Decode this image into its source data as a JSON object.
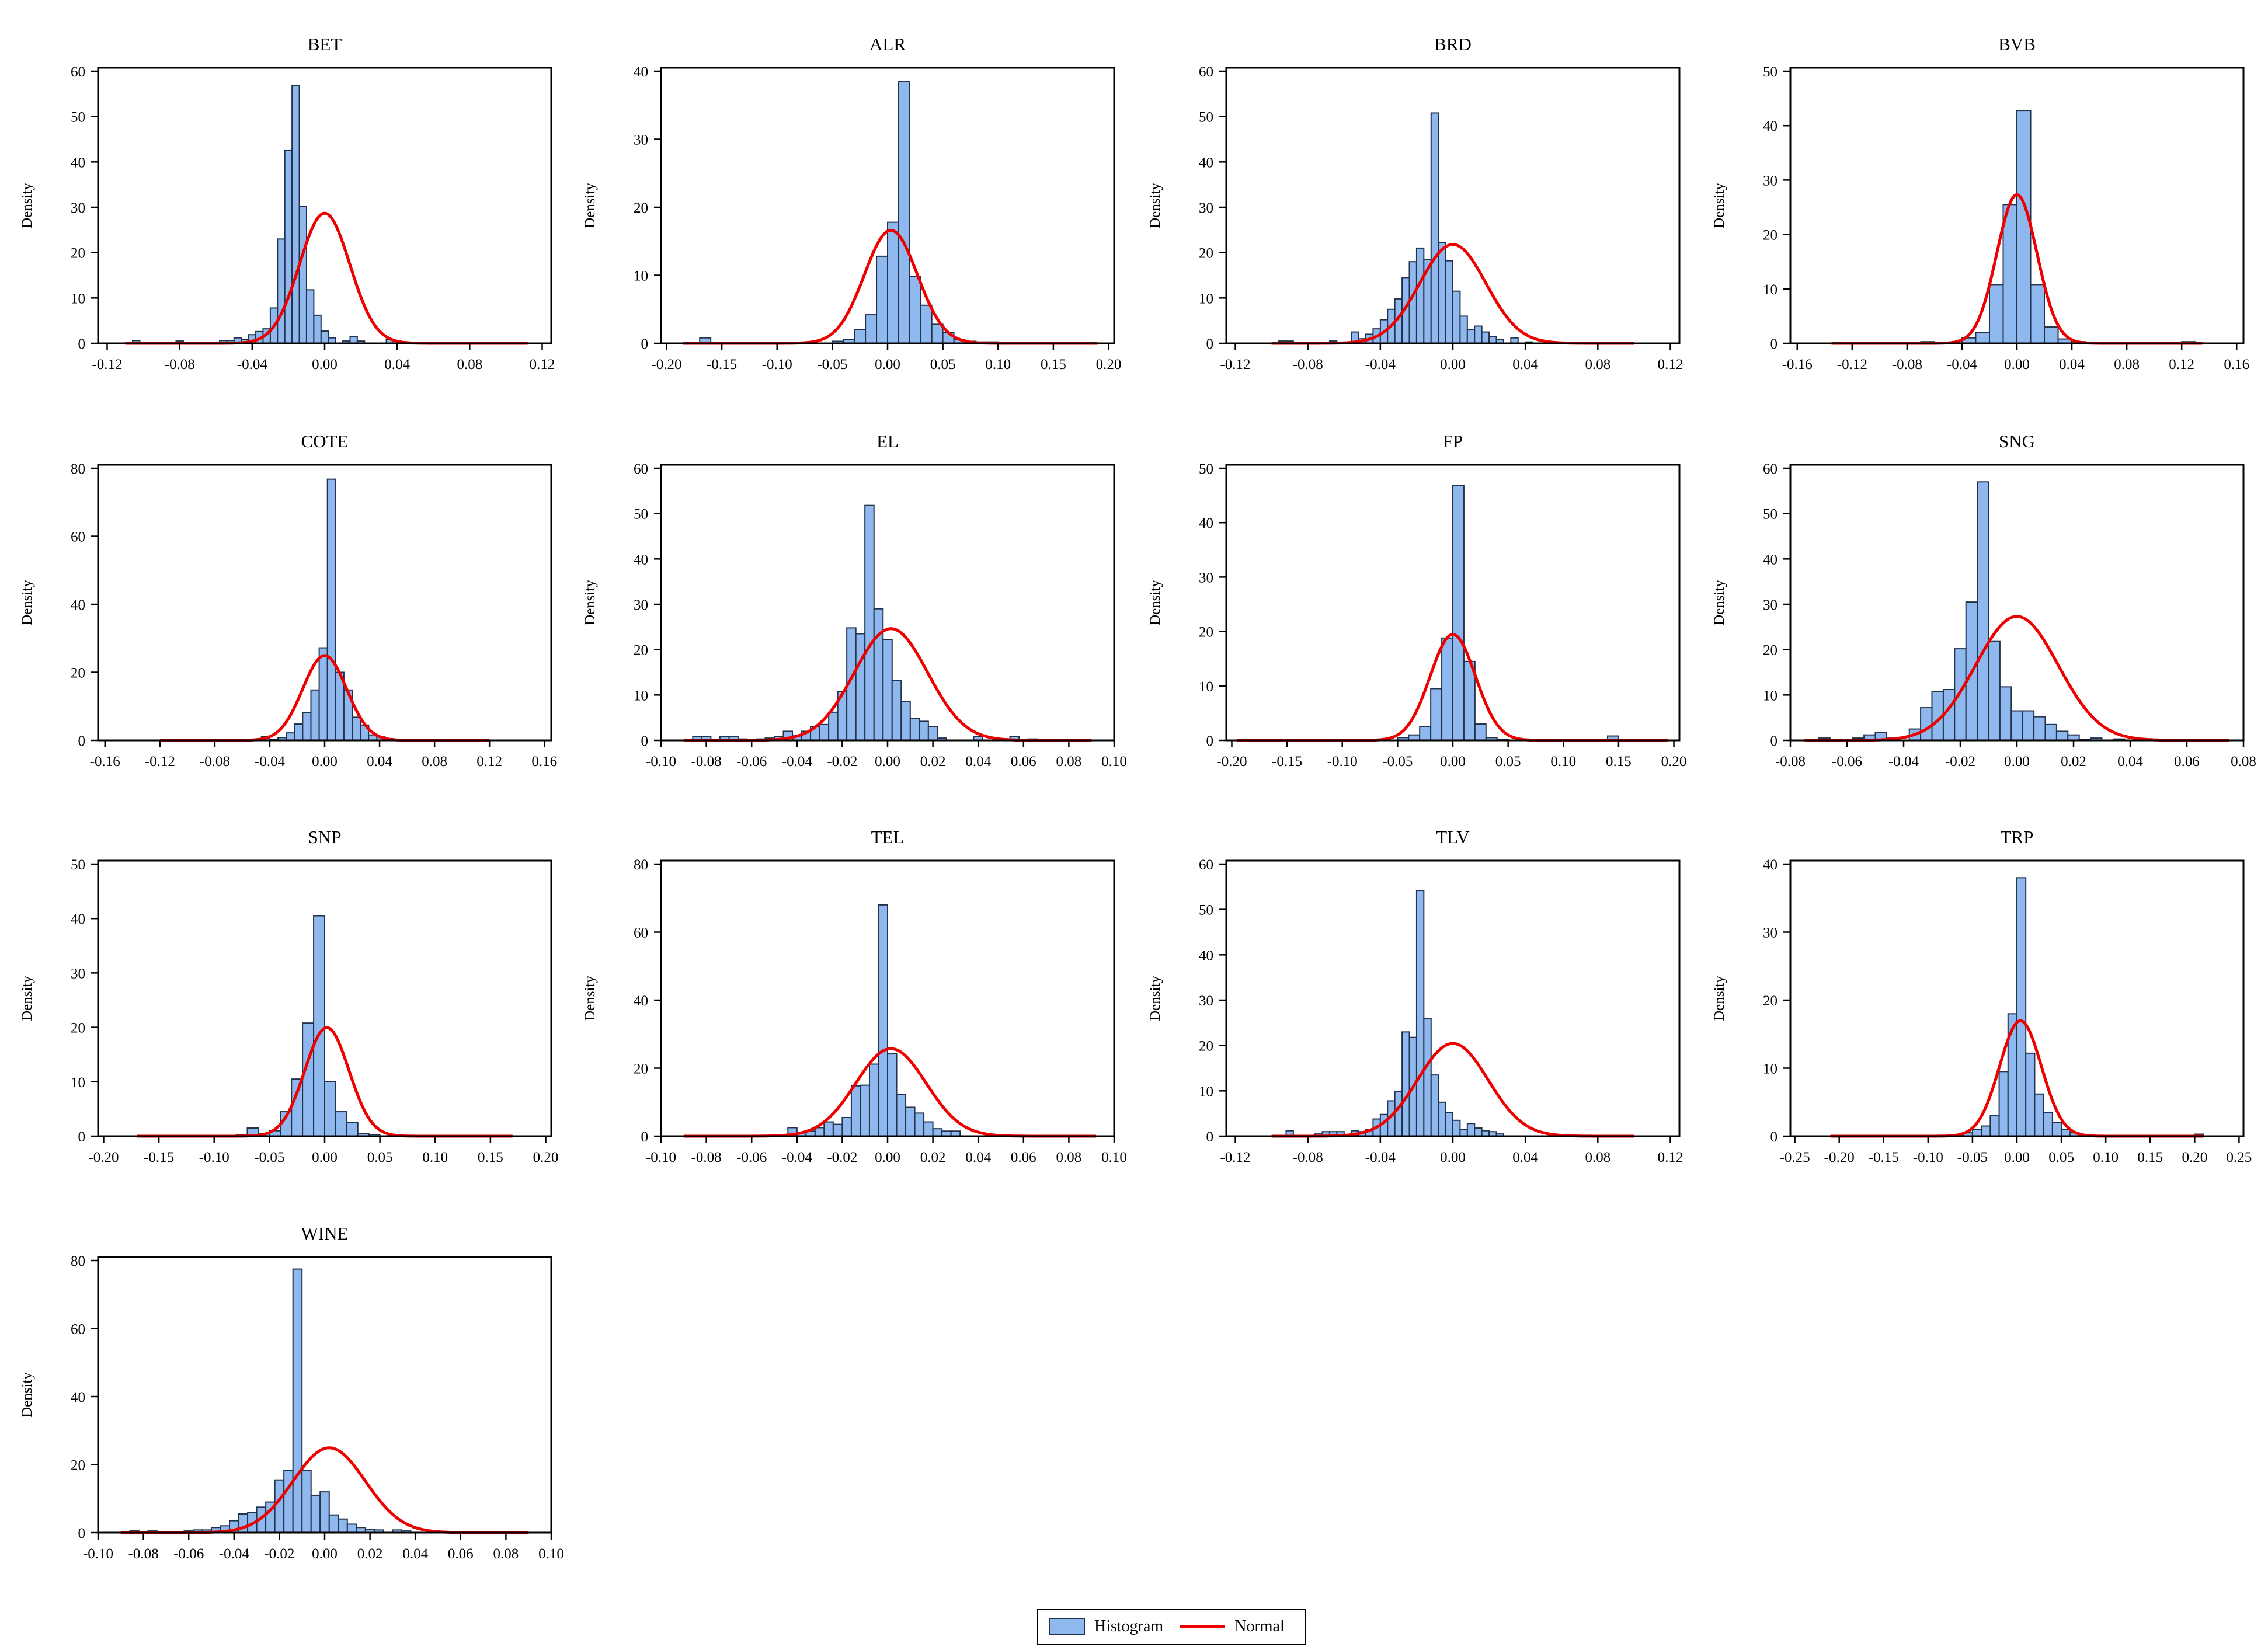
{
  "chart_data": [
    {
      "type": "histogram",
      "title": "BET",
      "ylabel": "Density",
      "xlim": [
        -0.125,
        0.125
      ],
      "ylim": [
        0,
        60
      ],
      "xticks": [
        -0.12,
        -0.08,
        -0.04,
        0.0,
        0.04,
        0.08,
        0.12
      ],
      "xtick_labels": [
        "-0.12",
        "-0.08",
        "-0.04",
        "0.00",
        "0.04",
        "0.08",
        "0.12"
      ],
      "yticks": [
        0,
        10,
        20,
        30,
        40,
        50,
        60
      ],
      "bin_start": -0.106,
      "bin_width": 0.004,
      "density": [
        0.6,
        0,
        0,
        0,
        0,
        0,
        0.5,
        0,
        0,
        0,
        0,
        0,
        0.6,
        0.6,
        1.2,
        0.8,
        1.9,
        2.6,
        3.2,
        7.8,
        23,
        42.5,
        56.8,
        30.2,
        11.8,
        6.2,
        2.7,
        1.2,
        0,
        0.5,
        1.5,
        0.5,
        0,
        0,
        0,
        0.9
      ],
      "normal": {
        "mean": 0.0,
        "sd": 0.0139
      },
      "curve_range": [
        -0.11,
        0.112
      ]
    },
    {
      "type": "histogram",
      "title": "ALR",
      "ylabel": "Density",
      "xlim": [
        -0.205,
        0.205
      ],
      "ylim": [
        0,
        40
      ],
      "xticks": [
        -0.2,
        -0.15,
        -0.1,
        -0.05,
        0.0,
        0.05,
        0.1,
        0.15,
        0.2
      ],
      "xtick_labels": [
        "-0.20",
        "-0.15",
        "-0.10",
        "-0.05",
        "0.00",
        "0.05",
        "0.10",
        "0.15",
        "0.20"
      ],
      "yticks": [
        0,
        10,
        20,
        30,
        40
      ],
      "bin_start": -0.17,
      "bin_width": 0.01,
      "density": [
        0.8,
        0,
        0,
        0,
        0,
        0,
        0,
        0,
        0,
        0,
        0,
        0,
        0.3,
        0.6,
        2,
        4.2,
        12.8,
        17.8,
        38.5,
        9.8,
        5.6,
        2.8,
        1.6,
        0.6,
        0.3,
        0.2,
        0.2,
        0,
        0.1
      ],
      "normal": {
        "mean": 0.003,
        "sd": 0.024
      },
      "curve_range": [
        -0.185,
        0.19
      ]
    },
    {
      "type": "histogram",
      "title": "BRD",
      "ylabel": "Density",
      "xlim": [
        -0.125,
        0.125
      ],
      "ylim": [
        0,
        60
      ],
      "xticks": [
        -0.12,
        -0.08,
        -0.04,
        0.0,
        0.04,
        0.08,
        0.12
      ],
      "xtick_labels": [
        "-0.12",
        "-0.08",
        "-0.04",
        "0.00",
        "0.04",
        "0.08",
        "0.12"
      ],
      "yticks": [
        0,
        10,
        20,
        30,
        40,
        50,
        60
      ],
      "bin_start": -0.096,
      "bin_width": 0.004,
      "density": [
        0.5,
        0.5,
        0,
        0,
        0,
        0,
        0,
        0.5,
        0,
        0,
        2.5,
        1,
        2,
        3.2,
        5.2,
        7.5,
        9.8,
        14.5,
        18,
        21,
        18.5,
        50.8,
        22.2,
        18.2,
        11.5,
        6,
        3,
        3.8,
        2.5,
        1.5,
        0.8,
        0,
        1.2,
        0,
        0.3
      ],
      "normal": {
        "mean": 0.0,
        "sd": 0.0183
      },
      "curve_range": [
        -0.1,
        0.1
      ]
    },
    {
      "type": "histogram",
      "title": "BVB",
      "ylabel": "Density",
      "xlim": [
        -0.165,
        0.165
      ],
      "ylim": [
        0,
        50
      ],
      "xticks": [
        -0.16,
        -0.12,
        -0.08,
        -0.04,
        0.0,
        0.04,
        0.08,
        0.12,
        0.16
      ],
      "xtick_labels": [
        "-0.16",
        "-0.12",
        "-0.08",
        "-0.04",
        "0.00",
        "0.04",
        "0.08",
        "0.12",
        "0.16"
      ],
      "yticks": [
        0,
        10,
        20,
        30,
        40,
        50
      ],
      "bin_start": -0.07,
      "bin_width": 0.01,
      "density": [
        0.3,
        0,
        0,
        1,
        2,
        10.8,
        25.5,
        42.8,
        10.8,
        3,
        0.8,
        0.3,
        0.1,
        0,
        0,
        0,
        0,
        0,
        0,
        0.3
      ],
      "normal": {
        "mean": 0.0,
        "sd": 0.0146
      },
      "curve_range": [
        -0.135,
        0.135
      ]
    },
    {
      "type": "histogram",
      "title": "COTE",
      "ylabel": "Density",
      "xlim": [
        -0.165,
        0.165
      ],
      "ylim": [
        0,
        80
      ],
      "xticks": [
        -0.16,
        -0.12,
        -0.08,
        -0.04,
        0.0,
        0.04,
        0.08,
        0.12,
        0.16
      ],
      "xtick_labels": [
        "-0.16",
        "-0.12",
        "-0.08",
        "-0.04",
        "0.00",
        "0.04",
        "0.08",
        "0.12",
        "0.16"
      ],
      "yticks": [
        0,
        20,
        40,
        60,
        80
      ],
      "bin_start": -0.046,
      "bin_width": 0.006,
      "density": [
        1.2,
        0.3,
        0.8,
        2.2,
        4.8,
        8.2,
        14.8,
        27.2,
        76.8,
        20,
        14.8,
        6.8,
        4.5,
        1.6,
        1,
        0.5
      ],
      "normal": {
        "mean": 0.0,
        "sd": 0.016
      },
      "curve_range": [
        -0.12,
        0.12
      ]
    },
    {
      "type": "histogram",
      "title": "EL",
      "ylabel": "Density",
      "xlim": [
        -0.1,
        0.1
      ],
      "ylim": [
        0,
        60
      ],
      "xticks": [
        -0.1,
        -0.08,
        -0.06,
        -0.04,
        -0.02,
        0.0,
        0.02,
        0.04,
        0.06,
        0.08,
        0.1
      ],
      "xtick_labels": [
        "-0.10",
        "-0.08",
        "-0.06",
        "-0.04",
        "-0.02",
        "0.00",
        "0.02",
        "0.04",
        "0.06",
        "0.08",
        "0.10"
      ],
      "yticks": [
        0,
        10,
        20,
        30,
        40,
        50,
        60
      ],
      "bin_start": -0.086,
      "bin_width": 0.004,
      "density": [
        0.8,
        0.8,
        0,
        0.8,
        0.8,
        0.3,
        0,
        0.3,
        0.5,
        0.8,
        2,
        1,
        2,
        3,
        3.5,
        6.2,
        10.8,
        24.8,
        23.5,
        51.8,
        29,
        22.2,
        13.2,
        8.5,
        4.8,
        4.2,
        3,
        0.5,
        0,
        0,
        0,
        0.8,
        0,
        0,
        0,
        0.8,
        0,
        0.3
      ],
      "normal": {
        "mean": 0.0015,
        "sd": 0.0162
      },
      "curve_range": [
        -0.09,
        0.09
      ]
    },
    {
      "type": "histogram",
      "title": "FP",
      "ylabel": "Density",
      "xlim": [
        -0.205,
        0.205
      ],
      "ylim": [
        0,
        50
      ],
      "xticks": [
        -0.2,
        -0.15,
        -0.1,
        -0.05,
        0.0,
        0.05,
        0.1,
        0.15,
        0.2
      ],
      "xtick_labels": [
        "-0.20",
        "-0.15",
        "-0.10",
        "-0.05",
        "0.00",
        "0.05",
        "0.10",
        "0.15",
        "0.20"
      ],
      "yticks": [
        0,
        10,
        20,
        30,
        40,
        50
      ],
      "bin_start": -0.05,
      "bin_width": 0.01,
      "density": [
        0.5,
        1,
        2.5,
        9.5,
        18.8,
        46.8,
        14.5,
        3,
        0.5,
        0.2,
        0,
        0,
        0,
        0,
        0,
        0,
        0,
        0,
        0,
        0.8
      ],
      "normal": {
        "mean": 0.0,
        "sd": 0.0205
      },
      "curve_range": [
        -0.195,
        0.195
      ]
    },
    {
      "type": "histogram",
      "title": "SNG",
      "ylabel": "Density",
      "xlim": [
        -0.08,
        0.08
      ],
      "ylim": [
        0,
        60
      ],
      "xticks": [
        -0.08,
        -0.06,
        -0.04,
        -0.02,
        0.0,
        0.02,
        0.04,
        0.06,
        0.08
      ],
      "xtick_labels": [
        "-0.08",
        "-0.06",
        "-0.04",
        "-0.02",
        "0.00",
        "0.02",
        "0.04",
        "0.06",
        "0.08"
      ],
      "yticks": [
        0,
        10,
        20,
        30,
        40,
        50,
        60
      ],
      "bin_start": -0.07,
      "bin_width": 0.004,
      "density": [
        0.5,
        0,
        0,
        0.5,
        1.2,
        1.8,
        0.5,
        0,
        2.5,
        7.2,
        10.8,
        11.2,
        20.2,
        30.5,
        57,
        21.8,
        11.8,
        6.5,
        6.5,
        5.2,
        3.5,
        2,
        1.2,
        0.2,
        0.5,
        0,
        0.3
      ],
      "normal": {
        "mean": 0.0,
        "sd": 0.0146
      },
      "curve_range": [
        -0.075,
        0.075
      ]
    },
    {
      "type": "histogram",
      "title": "SNP",
      "ylabel": "Density",
      "xlim": [
        -0.205,
        0.205
      ],
      "ylim": [
        0,
        50
      ],
      "xticks": [
        -0.2,
        -0.15,
        -0.1,
        -0.05,
        0.0,
        0.05,
        0.1,
        0.15,
        0.2
      ],
      "xtick_labels": [
        "-0.20",
        "-0.15",
        "-0.10",
        "-0.05",
        "0.00",
        "0.05",
        "0.10",
        "0.15",
        "0.20"
      ],
      "yticks": [
        0,
        10,
        20,
        30,
        40,
        50
      ],
      "bin_start": -0.08,
      "bin_width": 0.01,
      "density": [
        0.3,
        1.5,
        0.5,
        1,
        4.5,
        10.5,
        20.8,
        40.5,
        10,
        4.5,
        2.5,
        0.5,
        0.3
      ],
      "normal": {
        "mean": 0.002,
        "sd": 0.02
      },
      "curve_range": [
        -0.17,
        0.17
      ]
    },
    {
      "type": "histogram",
      "title": "TEL",
      "ylabel": "Density",
      "xlim": [
        -0.1,
        0.1
      ],
      "ylim": [
        0,
        80
      ],
      "xticks": [
        -0.1,
        -0.08,
        -0.06,
        -0.04,
        -0.02,
        0.0,
        0.02,
        0.04,
        0.06,
        0.08,
        0.1
      ],
      "xtick_labels": [
        "-0.10",
        "-0.08",
        "-0.06",
        "-0.04",
        "-0.02",
        "0.00",
        "0.02",
        "0.04",
        "0.06",
        "0.08",
        "0.10"
      ],
      "yticks": [
        0,
        20,
        40,
        60,
        80
      ],
      "bin_start": -0.044,
      "bin_width": 0.004,
      "density": [
        2.5,
        1,
        1.5,
        2.5,
        4.2,
        3.5,
        5.5,
        14.8,
        15,
        21.2,
        68,
        24.2,
        12.2,
        8.5,
        6.8,
        4.2,
        2.2,
        1.5,
        1.5
      ],
      "normal": {
        "mean": 0.0015,
        "sd": 0.0155
      },
      "curve_range": [
        -0.09,
        0.092
      ]
    },
    {
      "type": "histogram",
      "title": "TLV",
      "ylabel": "Density",
      "xlim": [
        -0.125,
        0.125
      ],
      "ylim": [
        0,
        60
      ],
      "xticks": [
        -0.12,
        -0.08,
        -0.04,
        0.0,
        0.04,
        0.08,
        0.12
      ],
      "xtick_labels": [
        "-0.12",
        "-0.08",
        "-0.04",
        "0.00",
        "0.04",
        "0.08",
        "0.12"
      ],
      "yticks": [
        0,
        10,
        20,
        30,
        40,
        50,
        60
      ],
      "bin_start": -0.096,
      "bin_width": 0.004,
      "density": [
        0,
        1.2,
        0,
        0,
        0,
        0.5,
        1,
        1,
        1,
        0,
        1.2,
        1,
        1.5,
        3.8,
        4.8,
        7.8,
        9.8,
        23,
        21.8,
        54.2,
        26,
        13.5,
        7.5,
        5.2,
        3.5,
        1.5,
        2.8,
        1.8,
        1.2,
        1,
        0.5
      ],
      "normal": {
        "mean": 0.0,
        "sd": 0.0195
      },
      "curve_range": [
        -0.1,
        0.1
      ]
    },
    {
      "type": "histogram",
      "title": "TRP",
      "ylabel": "Density",
      "xlim": [
        -0.255,
        0.255
      ],
      "ylim": [
        0,
        40
      ],
      "xticks": [
        -0.25,
        -0.2,
        -0.15,
        -0.1,
        -0.05,
        0.0,
        0.05,
        0.1,
        0.15,
        0.2,
        0.25
      ],
      "xtick_labels": [
        "-0.25",
        "-0.20",
        "-0.15",
        "-0.10",
        "-0.05",
        "0.00",
        "0.05",
        "0.10",
        "0.15",
        "0.20",
        "0.25"
      ],
      "yticks": [
        0,
        10,
        20,
        30,
        40
      ],
      "bin_start": -0.06,
      "bin_width": 0.01,
      "density": [
        0.5,
        1,
        1.5,
        3,
        9.5,
        18,
        38,
        12.2,
        6.2,
        3.5,
        2,
        1,
        0.5,
        0.2,
        0,
        0,
        0,
        0,
        0,
        0,
        0,
        0,
        0,
        0,
        0,
        0,
        0.3
      ],
      "normal": {
        "mean": 0.004,
        "sd": 0.0235
      },
      "curve_range": [
        -0.21,
        0.21
      ]
    },
    {
      "type": "histogram",
      "title": "WINE",
      "ylabel": "Density",
      "xlim": [
        -0.1,
        0.1
      ],
      "ylim": [
        0,
        80
      ],
      "xticks": [
        -0.1,
        -0.08,
        -0.06,
        -0.04,
        -0.02,
        0.0,
        0.02,
        0.04,
        0.06,
        0.08,
        0.1
      ],
      "xtick_labels": [
        "-0.10",
        "-0.08",
        "-0.06",
        "-0.04",
        "-0.02",
        "0.00",
        "0.02",
        "0.04",
        "0.06",
        "0.08",
        "0.10"
      ],
      "yticks": [
        0,
        20,
        40,
        60,
        80
      ],
      "bin_start": -0.086,
      "bin_width": 0.004,
      "density": [
        0.5,
        0,
        0.5,
        0,
        0,
        0.3,
        0.5,
        0.8,
        0.8,
        1.5,
        2,
        3.5,
        5.5,
        6,
        7.5,
        9,
        15.5,
        18.2,
        77.5,
        18.2,
        11,
        12,
        5.2,
        4,
        2.5,
        1.5,
        1,
        0.8,
        0,
        0.8,
        0.5
      ],
      "normal": {
        "mean": 0.002,
        "sd": 0.016
      },
      "curve_range": [
        -0.09,
        0.09
      ]
    }
  ],
  "legend": {
    "histogram_label": "Histogram",
    "normal_label": "Normal"
  },
  "colors": {
    "bar_fill": "#8fb8ee",
    "bar_stroke": "#22324a",
    "curve": "#ee0000",
    "axis": "#000000"
  }
}
